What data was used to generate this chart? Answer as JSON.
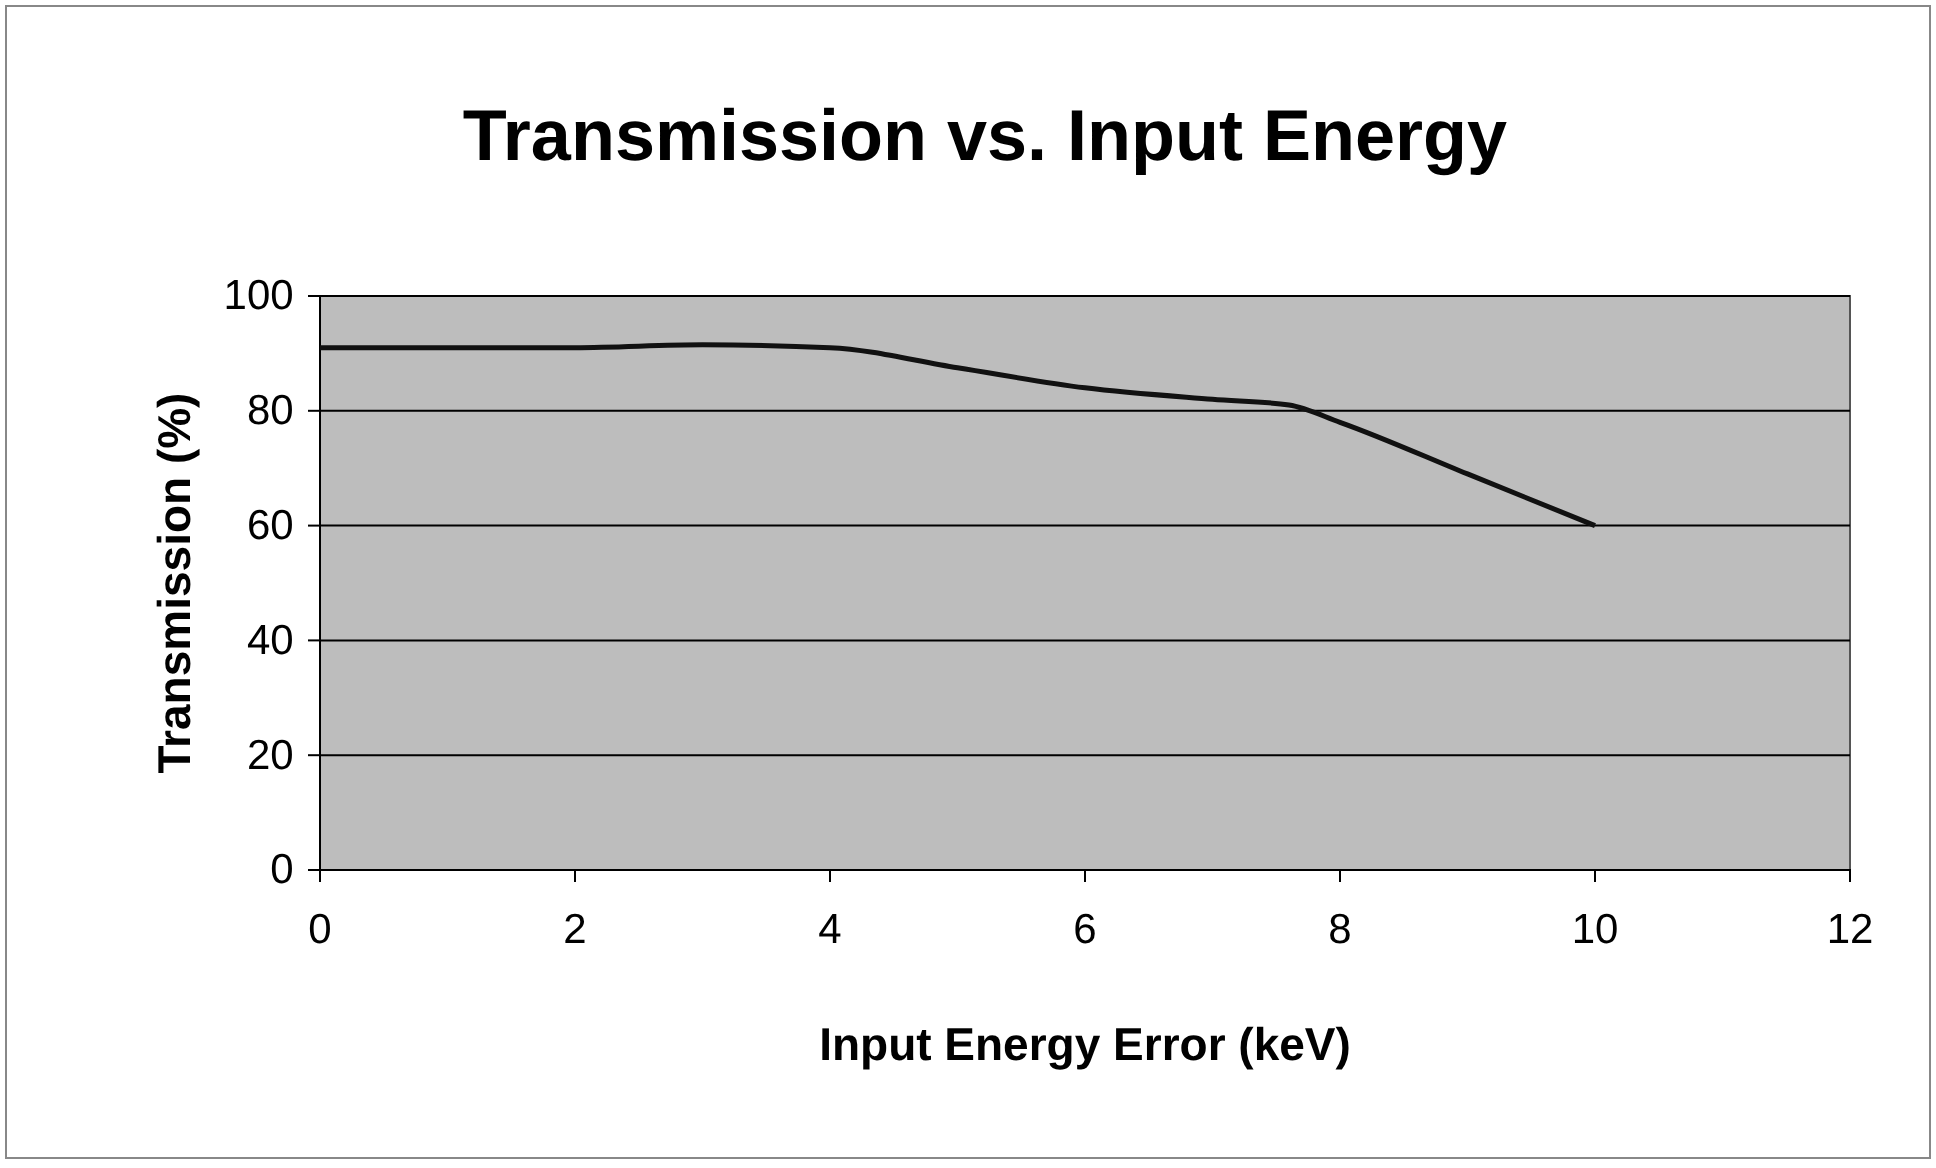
{
  "chart_data": {
    "type": "line",
    "title": "Transmission vs. Input Energy",
    "xlabel": "Input Energy Error (keV)",
    "ylabel": "Transmission (%)",
    "x": [
      0,
      1,
      2,
      3,
      4,
      5,
      6,
      7,
      7.6,
      8,
      9,
      10
    ],
    "series": [
      {
        "color": "#111111",
        "values": [
          91,
          91,
          91,
          91.5,
          91,
          87.5,
          84,
          82,
          81,
          78,
          69,
          60
        ]
      }
    ],
    "xlim": [
      0,
      12
    ],
    "xticks": [
      0,
      2,
      4,
      6,
      8,
      10,
      12
    ],
    "ylim": [
      0,
      100
    ],
    "yticks": [
      0,
      20,
      40,
      60,
      80,
      100
    ],
    "grid": "y",
    "marker": "none",
    "line_style": "solid"
  }
}
